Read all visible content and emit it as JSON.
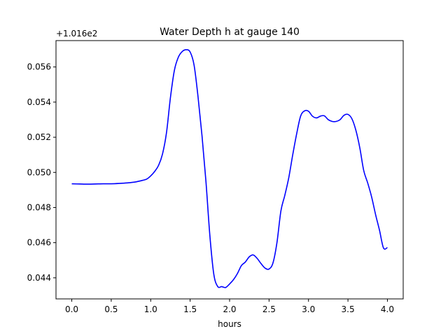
{
  "chart_data": {
    "type": "line",
    "title": "Water Depth h at gauge 140",
    "xlabel": "hours",
    "ylabel": "",
    "y_offset_label": "+1.016e2",
    "xlim": [
      -0.2,
      4.2
    ],
    "ylim": [
      0.0428,
      0.0575
    ],
    "grid": false,
    "x_ticks": [
      0.0,
      0.5,
      1.0,
      1.5,
      2.0,
      2.5,
      3.0,
      3.5,
      4.0
    ],
    "x_tick_labels": [
      "0.0",
      "0.5",
      "1.0",
      "1.5",
      "2.0",
      "2.5",
      "3.0",
      "3.5",
      "4.0"
    ],
    "y_ticks": [
      0.044,
      0.046,
      0.048,
      0.05,
      0.052,
      0.054,
      0.056
    ],
    "y_tick_labels": [
      "0.044",
      "0.046",
      "0.048",
      "0.050",
      "0.052",
      "0.054",
      "0.056"
    ],
    "colors": {
      "line": "#0000ff"
    },
    "series": [
      {
        "x": [
          0.0,
          0.1,
          0.2,
          0.3,
          0.4,
          0.5,
          0.6,
          0.7,
          0.8,
          0.9,
          0.95,
          1.0,
          1.05,
          1.1,
          1.15,
          1.2,
          1.25,
          1.3,
          1.35,
          1.4,
          1.45,
          1.5,
          1.55,
          1.6,
          1.65,
          1.7,
          1.75,
          1.8,
          1.85,
          1.9,
          1.95,
          2.0,
          2.05,
          2.1,
          2.15,
          2.2,
          2.25,
          2.3,
          2.35,
          2.4,
          2.45,
          2.5,
          2.55,
          2.6,
          2.65,
          2.7,
          2.75,
          2.8,
          2.85,
          2.9,
          2.95,
          3.0,
          3.05,
          3.1,
          3.15,
          3.2,
          3.25,
          3.3,
          3.35,
          3.4,
          3.45,
          3.5,
          3.55,
          3.6,
          3.65,
          3.7,
          3.75,
          3.8,
          3.85,
          3.9,
          3.95,
          4.0
        ],
        "values": [
          0.04935,
          0.04934,
          0.04933,
          0.04934,
          0.04935,
          0.04935,
          0.04937,
          0.0494,
          0.04945,
          0.04955,
          0.04962,
          0.0498,
          0.05005,
          0.0504,
          0.05105,
          0.05225,
          0.05425,
          0.0558,
          0.05655,
          0.05688,
          0.05698,
          0.05685,
          0.0561,
          0.0543,
          0.0521,
          0.0495,
          0.0464,
          0.0442,
          0.0435,
          0.0435,
          0.04345,
          0.04365,
          0.0439,
          0.04425,
          0.0447,
          0.0449,
          0.0452,
          0.0453,
          0.0451,
          0.0448,
          0.04455,
          0.0445,
          0.04485,
          0.046,
          0.0478,
          0.0487,
          0.0497,
          0.051,
          0.0522,
          0.0532,
          0.0535,
          0.05348,
          0.0532,
          0.0531,
          0.0532,
          0.05322,
          0.053,
          0.0529,
          0.0529,
          0.053,
          0.05325,
          0.0533,
          0.05305,
          0.0524,
          0.0514,
          0.0501,
          0.0494,
          0.0486,
          0.0476,
          0.0467,
          0.0457,
          0.04572
        ]
      }
    ]
  }
}
